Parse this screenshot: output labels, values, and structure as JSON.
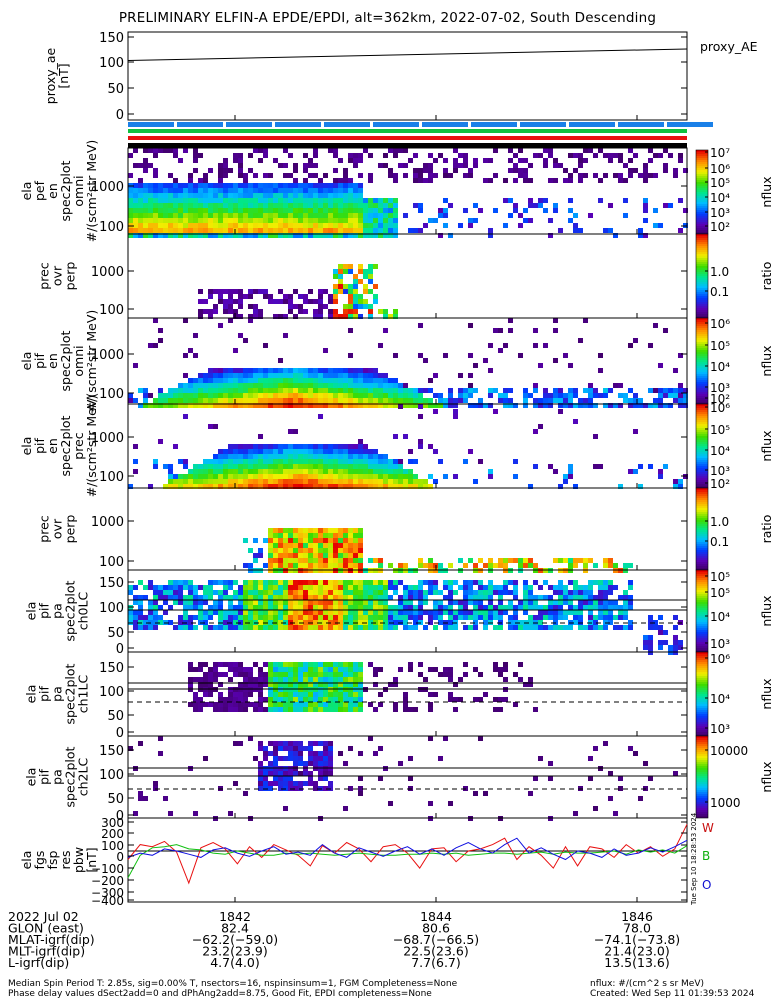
{
  "title": "PRELIMINARY ELFIN-A EPDE/EPDI, alt=362km, 2022-07-02, South Descending",
  "colors": {
    "red": "#e81010",
    "green": "#10c010",
    "blue": "#1010e0",
    "cyan": "#00c8c8",
    "bar_blue": "#1a80e8",
    "bar_green": "#10c040",
    "bar_red": "#e81010"
  },
  "panels": [
    {
      "id": "proxy_ae",
      "ylabel": [
        "proxy_ae",
        "[nT]"
      ],
      "yticks": [
        "150",
        "100",
        "50",
        "0"
      ],
      "legend": "proxy_AE"
    },
    {
      "id": "ela_pef_en_spec2plot_omni",
      "ylabel": [
        "ela",
        "pef",
        "en",
        "spec2plot",
        "omni",
        "#/(scm²str MeV)"
      ],
      "yticks": [
        "1000",
        "100"
      ],
      "cbar": {
        "ticks": [
          "10⁷",
          "10⁶",
          "10⁵",
          "10⁴",
          "10³",
          "10²"
        ],
        "label": "nflux"
      }
    },
    {
      "id": "ela_pef_prec_ovr_perp",
      "ylabel": [
        "prec",
        "ovr",
        "perp"
      ],
      "yticks": [
        "1000",
        "100"
      ],
      "cbar": {
        "ticks": [
          "1.0",
          "0.1"
        ],
        "label": "ratio"
      }
    },
    {
      "id": "ela_pif_en_spec2plot_omni",
      "ylabel": [
        "ela",
        "pif",
        "en",
        "spec2plot",
        "omni",
        "#/(scm²str MeV)"
      ],
      "yticks": [
        "1000",
        "100"
      ],
      "cbar": {
        "ticks": [
          "10⁶",
          "10⁵",
          "10⁴",
          "10³",
          "10²"
        ],
        "label": "nflux"
      }
    },
    {
      "id": "ela_pif_en_spec2plot_prec",
      "ylabel": [
        "ela",
        "pif",
        "en",
        "spec2plot",
        "prec",
        "#/(scm²str MeV)"
      ],
      "yticks": [
        "1000",
        "100"
      ],
      "cbar": {
        "ticks": [
          "10⁶",
          "10⁵",
          "10⁴",
          "10³",
          "10²"
        ],
        "label": "nflux"
      }
    },
    {
      "id": "ela_pif_prec_ovr_perp",
      "ylabel": [
        "prec",
        "ovr",
        "perp"
      ],
      "yticks": [
        "1000",
        "100"
      ],
      "cbar": {
        "ticks": [
          "1.0",
          "0.1"
        ],
        "label": "ratio"
      }
    },
    {
      "id": "ela_pif_pa_spec2plot_ch0LC",
      "ylabel": [
        "ela",
        "pif",
        "pa",
        "spec2plot",
        "ch0LC"
      ],
      "yticks": [
        "150",
        "100",
        "50",
        "0"
      ],
      "cbar": {
        "ticks": [
          "10⁵",
          "10⁵",
          "10⁴",
          "10³"
        ],
        "label": "nflux"
      }
    },
    {
      "id": "ela_pif_pa_spec2plot_ch1LC",
      "ylabel": [
        "ela",
        "pif",
        "pa",
        "spec2plot",
        "ch1LC"
      ],
      "yticks": [
        "150",
        "100",
        "50",
        "0"
      ],
      "cbar": {
        "ticks": [
          "10⁶",
          "10⁴",
          "10³"
        ],
        "label": "nflux"
      }
    },
    {
      "id": "ela_pif_pa_spec2plot_ch2LC",
      "ylabel": [
        "ela",
        "pif",
        "pa",
        "spec2plot",
        "ch2LC"
      ],
      "yticks": [
        "150",
        "100",
        "50",
        "0"
      ],
      "cbar": {
        "ticks": [
          "10000",
          "1000"
        ],
        "label": "nflux"
      }
    },
    {
      "id": "ela_fgs_fsp_res_pbw",
      "ylabel": [
        "ela",
        "fgs",
        "fsp",
        "res",
        "pbw",
        "[nT]"
      ],
      "yticks": [
        "300",
        "200",
        "100",
        "0",
        "−100",
        "−200",
        "−300",
        "−400"
      ],
      "legend": [
        "W",
        "B",
        "O"
      ]
    }
  ],
  "timestamp_vertical": "Tue Sep 10 18:28:53 2024",
  "footer": {
    "rows": [
      {
        "label": "2022 Jul 02",
        "values": [
          "1842",
          "1844",
          "1846"
        ]
      },
      {
        "label": "GLON (east)",
        "values": [
          "82.4",
          "80.6",
          "78.0"
        ]
      },
      {
        "label": "MLAT-igrf(dip)",
        "values": [
          "−62.2(−59.0)",
          "−68.7(−66.5)",
          "−74.1(−73.8)"
        ]
      },
      {
        "label": "MLT-igrf(dip)",
        "values": [
          "23.2(23.9)",
          "22.5(23.6)",
          "21.4(23.0)"
        ]
      },
      {
        "label": "L-igrf(dip)",
        "values": [
          "4.7(4.0)",
          "7.7(6.7)",
          "13.5(13.6)"
        ]
      }
    ],
    "note1": "Median Spin Period T: 2.85s, sig=0.00% T, nsectors=16, nspinsinsum=1, FGM Completeness=None",
    "note2": "Phase delay values dSect2add=0 and dPhAng2add=8.75, Good Fit, EPDI completeness=None",
    "units": "nflux: #/(cm^2 s sr MeV)",
    "created": "Created: Wed Sep 11 01:39:53 2024"
  },
  "chart_data": {
    "type": "line",
    "title": "PRELIMINARY ELFIN-A EPDE/EPDI, alt=362km, 2022-07-02, South Descending",
    "x_ticks": [
      "1842",
      "1844",
      "1846"
    ],
    "proxy_ae": {
      "ylim": [
        0,
        150
      ],
      "x": [
        0,
        1
      ],
      "y": [
        103,
        125
      ]
    },
    "fgs_res": {
      "ylim": [
        -450,
        300
      ],
      "series": [
        {
          "name": "W",
          "color": "#e81010",
          "values": [
            -80,
            60,
            40,
            90,
            -10,
            -300,
            30,
            80,
            20,
            -120,
            40,
            -60,
            60,
            10,
            -40,
            -140,
            50,
            -20,
            80,
            20,
            -100,
            40,
            60,
            -20,
            -160,
            20,
            30,
            -100,
            0,
            20,
            60,
            120,
            -80,
            40,
            -40,
            -160,
            40,
            -140,
            40,
            20,
            -60,
            60,
            -20,
            40,
            -50,
            20,
            250
          ]
        },
        {
          "name": "B",
          "color": "#10c010",
          "values": [
            -250,
            -40,
            30,
            40,
            60,
            20,
            10,
            -20,
            -30,
            0,
            -20,
            -40,
            -40,
            -20,
            -30,
            -20,
            -30,
            -40,
            -30,
            -20,
            -30,
            -40,
            -40,
            -30,
            -30,
            -20,
            -30,
            -20,
            -40,
            -30,
            -20,
            -20,
            -30,
            -20,
            -10,
            -30,
            -10,
            -20,
            -20,
            -10,
            0,
            -30,
            10,
            -10,
            10,
            -20,
            50
          ]
        },
        {
          "name": "O",
          "color": "#1010e0",
          "values": [
            -60,
            -20,
            -40,
            20,
            0,
            -30,
            -60,
            10,
            30,
            -20,
            -50,
            0,
            40,
            -30,
            -10,
            -40,
            60,
            -20,
            -60,
            30,
            -10,
            -50,
            0,
            40,
            -30,
            20,
            -40,
            30,
            80,
            20,
            -20,
            60,
            120,
            -20,
            30,
            -30,
            -80,
            0,
            -20,
            -60,
            20,
            -40,
            -20,
            30,
            -10,
            40,
            100
          ]
        }
      ]
    },
    "spectrogram_layers": "energy / pitch-angle spectrograms (values shown by color)"
  }
}
